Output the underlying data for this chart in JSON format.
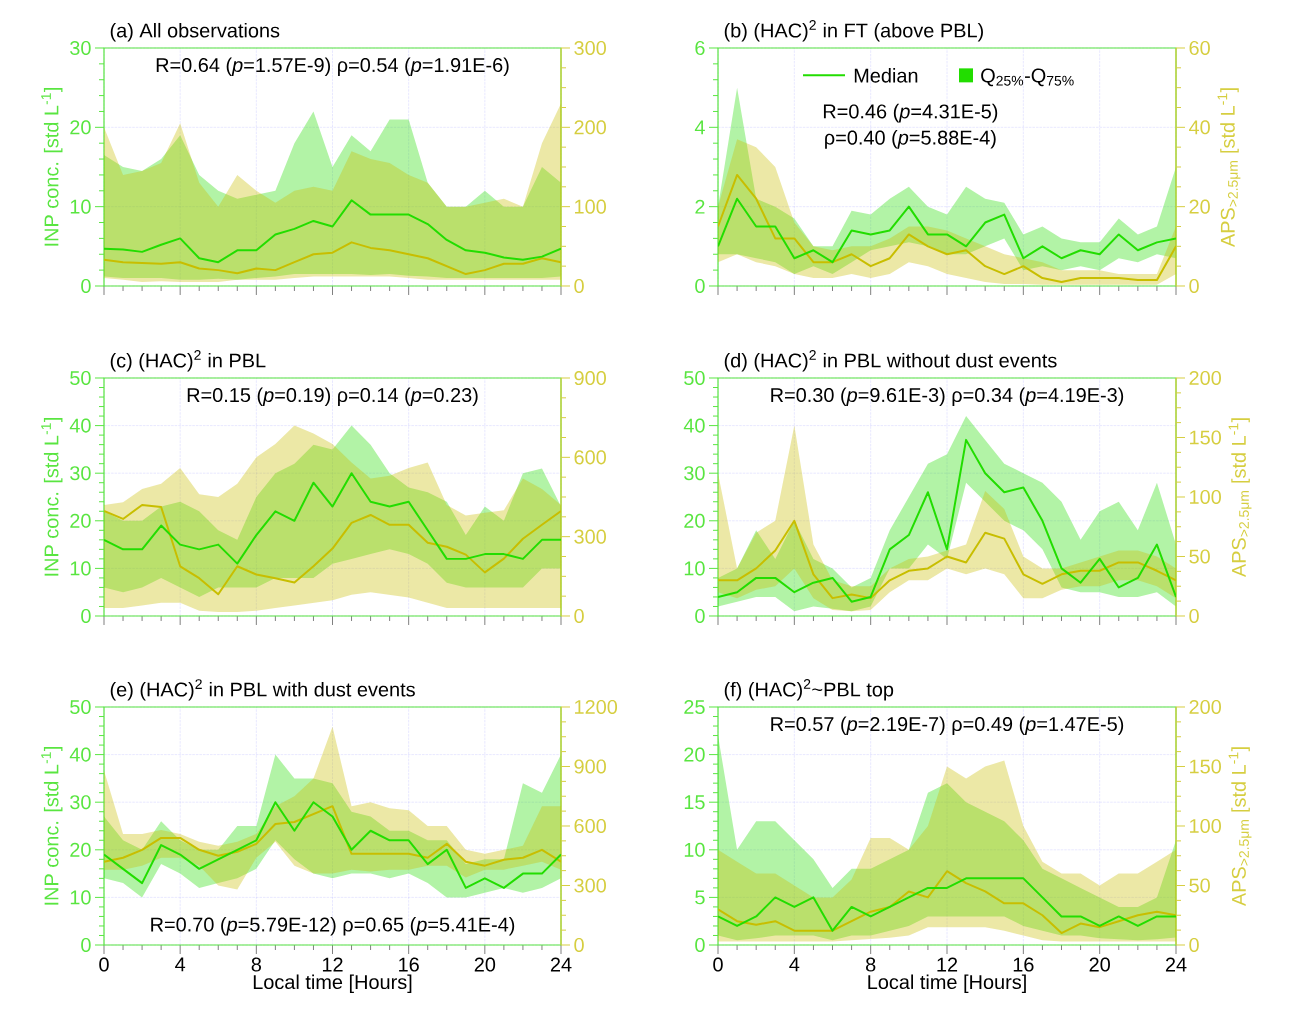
{
  "chart_data": [
    {
      "type": "line",
      "title": "(a) All observations",
      "ylabel": "INP conc. [std L$^{-1}$]",
      "annotations": [
        "R=0.64 (*p*=1.57E-9) ρ=0.54 (*p*=1.91E-6)"
      ],
      "x": [
        0,
        1,
        2,
        3,
        4,
        5,
        6,
        7,
        8,
        9,
        10,
        11,
        12,
        13,
        14,
        15,
        16,
        17,
        18,
        19,
        20,
        21,
        22,
        23,
        24
      ],
      "xlim": [
        0,
        24
      ],
      "xticks": [
        0,
        4,
        8,
        12,
        16,
        20,
        24
      ],
      "ylim": [
        0,
        30
      ],
      "yticks": [
        0,
        10,
        20,
        30
      ],
      "y2lim": [
        0,
        300
      ],
      "y2ticks": [
        0,
        100,
        200,
        300
      ],
      "grid": true,
      "tick_labels": "y",
      "series": [
        {
          "color": "#22dd00",
          "values": [
            4.7,
            4.6,
            4.3,
            5.2,
            6.0,
            3.5,
            3.0,
            4.5,
            4.5,
            6.5,
            7.2,
            8.2,
            7.5,
            10.8,
            9.0,
            9.0,
            9.0,
            7.8,
            5.8,
            4.5,
            4.2,
            3.6,
            3.3,
            3.7,
            4.7
          ],
          "lower": [
            1.2,
            1.0,
            1.0,
            1.0,
            0.8,
            0.8,
            0.9,
            0.8,
            1.0,
            1.2,
            1.5,
            1.5,
            1.5,
            1.5,
            1.4,
            1.5,
            1.3,
            1.2,
            1.0,
            1.0,
            1.0,
            1.0,
            1.0,
            1.0,
            1.2
          ],
          "upper": [
            16.5,
            15,
            14.5,
            16,
            19,
            14,
            12,
            11,
            11.5,
            12,
            18,
            22,
            15,
            19,
            17,
            21,
            21,
            13,
            10,
            10,
            12,
            10,
            10,
            15,
            13
          ]
        },
        {
          "color": "#c8be00",
          "axis": "y2",
          "values": [
            33,
            30,
            29,
            28,
            30,
            22,
            20,
            16,
            22,
            20,
            30,
            40,
            42,
            55,
            48,
            45,
            40,
            35,
            25,
            15,
            20,
            28,
            28,
            35,
            30
          ],
          "lower": [
            10,
            8,
            5,
            6,
            5,
            5,
            5,
            8,
            8,
            8,
            10,
            12,
            12,
            12,
            12,
            12,
            10,
            8,
            8,
            8,
            8,
            8,
            8,
            8,
            8
          ],
          "upper": [
            200,
            140,
            145,
            155,
            205,
            130,
            100,
            140,
            120,
            105,
            120,
            125,
            120,
            170,
            160,
            155,
            140,
            130,
            100,
            100,
            105,
            110,
            100,
            180,
            230
          ]
        }
      ]
    },
    {
      "type": "line",
      "title": "(b) (HAC)$^{2}$ in FT (above PBL)",
      "y2label": "APS$_{>2.5μm}$ [std L$^{-1}$]",
      "annotations": [
        "Q$_{25%}$-Q$_{75%}$",
        "R=0.46 (*p*=4.31E-5)",
        "ρ=0.40 (*p*=5.88E-4)"
      ],
      "legend": "top",
      "x": [
        0,
        1,
        2,
        3,
        4,
        5,
        6,
        7,
        8,
        9,
        10,
        11,
        12,
        13,
        14,
        15,
        16,
        17,
        18,
        19,
        20,
        21,
        22,
        23,
        24
      ],
      "xlim": [
        0,
        24
      ],
      "xticks": [
        0,
        4,
        8,
        12,
        16,
        20,
        24
      ],
      "ylim": [
        0,
        6
      ],
      "yticks": [
        0,
        2,
        4,
        6
      ],
      "y2lim": [
        0,
        60
      ],
      "y2ticks": [
        0,
        20,
        40,
        60
      ],
      "grid": true,
      "tick_labels": "y",
      "series": [
        {
          "name": "Median",
          "color": "#22dd00",
          "values": [
            1.0,
            2.2,
            1.5,
            1.5,
            0.7,
            0.9,
            0.6,
            1.4,
            1.3,
            1.4,
            2.0,
            1.3,
            1.3,
            1.0,
            1.6,
            1.8,
            0.7,
            1.0,
            0.7,
            0.9,
            0.8,
            1.3,
            0.9,
            1.1,
            1.2
          ],
          "lower": [
            0.8,
            0.8,
            0.7,
            0.6,
            0.3,
            0.5,
            0.3,
            0.6,
            0.9,
            1.0,
            1.1,
            1.0,
            0.8,
            0.8,
            1.0,
            1.2,
            0.4,
            0.5,
            0.4,
            0.5,
            0.4,
            0.7,
            0.6,
            0.8,
            0.7
          ],
          "upper": [
            2.0,
            5.0,
            2.2,
            2.0,
            1.7,
            1.0,
            1.0,
            1.9,
            1.8,
            2.2,
            2.5,
            2.0,
            1.8,
            2.5,
            2.2,
            2.1,
            1.3,
            1.5,
            1.2,
            1.1,
            1.1,
            1.7,
            1.3,
            1.5,
            3.0
          ]
        },
        {
          "color": "#c8be00",
          "axis": "y2",
          "values": [
            15,
            28,
            22,
            12,
            12,
            6,
            6,
            8,
            5,
            7,
            13,
            10,
            8,
            9,
            5,
            3,
            5,
            2,
            1,
            2,
            2,
            2,
            1.5,
            1.5,
            10
          ],
          "lower": [
            6,
            8,
            6,
            5,
            3,
            2,
            2,
            3,
            2,
            3,
            6,
            5,
            3,
            2,
            1,
            0.5,
            0.5,
            0.3,
            0.3,
            0.3,
            0.3,
            0.3,
            0.3,
            0.3,
            3
          ],
          "upper": [
            20,
            37,
            35,
            30,
            16,
            10,
            9,
            10,
            10,
            12,
            15,
            15,
            14,
            12,
            10,
            8,
            7,
            6,
            4,
            4,
            4,
            3,
            3,
            3,
            15
          ]
        }
      ]
    },
    {
      "type": "line",
      "title": "(c) (HAC)$^{2}$ in PBL",
      "ylabel": "INP conc. [std L$^{-1}$]",
      "annotations": [
        "R=0.15 (*p*=0.19)  ρ=0.14 (*p*=0.23)"
      ],
      "x": [
        0,
        1,
        2,
        3,
        4,
        5,
        6,
        7,
        8,
        9,
        10,
        11,
        12,
        13,
        14,
        15,
        16,
        17,
        18,
        19,
        20,
        21,
        22,
        23,
        24
      ],
      "xlim": [
        0,
        24
      ],
      "xticks": [
        0,
        4,
        8,
        12,
        16,
        20,
        24
      ],
      "ylim": [
        0,
        50
      ],
      "yticks": [
        0,
        10,
        20,
        30,
        40,
        50
      ],
      "y2lim": [
        0,
        900
      ],
      "y2ticks": [
        0,
        300,
        600,
        900
      ],
      "grid": true,
      "tick_labels": "y",
      "series": [
        {
          "color": "#22dd00",
          "values": [
            16,
            14,
            14,
            19,
            15,
            14,
            15,
            11,
            17,
            22,
            20,
            28,
            23,
            30,
            24,
            23,
            24,
            18,
            12,
            12,
            13,
            13,
            12,
            16,
            16
          ],
          "lower": [
            6,
            5,
            6,
            8,
            6,
            4,
            6,
            6,
            6,
            8,
            8,
            8,
            11,
            12,
            13,
            14,
            13,
            11,
            7,
            6,
            6,
            6,
            6,
            10,
            10
          ],
          "upper": [
            22,
            20,
            20,
            23,
            24,
            22,
            18,
            16,
            25,
            30,
            32,
            36,
            35,
            40,
            36,
            30,
            27,
            26,
            24,
            17,
            23,
            20,
            30,
            31,
            23
          ]
        },
        {
          "color": "#c8be00",
          "axis": "y2",
          "values": [
            397,
            367,
            420,
            412,
            188,
            143,
            82,
            188,
            157,
            143,
            127,
            188,
            255,
            352,
            382,
            345,
            345,
            277,
            262,
            232,
            165,
            217,
            292,
            345,
            397
          ],
          "lower": [
            30,
            30,
            40,
            50,
            50,
            20,
            15,
            15,
            20,
            30,
            40,
            50,
            60,
            80,
            90,
            80,
            70,
            50,
            30,
            30,
            30,
            30,
            30,
            30,
            30
          ],
          "upper": [
            420,
            430,
            480,
            500,
            560,
            460,
            450,
            500,
            600,
            650,
            720,
            690,
            650,
            580,
            520,
            530,
            560,
            580,
            420,
            380,
            390,
            400,
            520,
            480,
            420
          ]
        }
      ]
    },
    {
      "type": "line",
      "title": "(d) (HAC)$^{2}$ in PBL without dust events",
      "y2label": "APS$_{>2.5μm}$ [std L$^{-1}$]",
      "annotations": [
        "R=0.30 (*p*=9.61E-3)  ρ=0.34 (*p*=4.19E-3)"
      ],
      "x": [
        0,
        1,
        2,
        3,
        4,
        5,
        6,
        7,
        8,
        9,
        10,
        11,
        12,
        13,
        14,
        15,
        16,
        17,
        18,
        19,
        20,
        21,
        22,
        23,
        24
      ],
      "xlim": [
        0,
        24
      ],
      "xticks": [
        0,
        4,
        8,
        12,
        16,
        20,
        24
      ],
      "ylim": [
        0,
        50
      ],
      "yticks": [
        0,
        10,
        20,
        30,
        40,
        50
      ],
      "y2lim": [
        0,
        200
      ],
      "y2ticks": [
        0,
        50,
        100,
        150,
        200
      ],
      "grid": true,
      "tick_labels": "y",
      "series": [
        {
          "color": "#22dd00",
          "values": [
            4,
            5,
            8,
            8,
            5,
            7,
            8,
            3,
            4,
            14,
            17,
            26,
            14,
            37,
            30,
            26,
            27,
            20,
            10,
            7,
            12,
            6,
            8,
            15,
            4
          ],
          "lower": [
            2,
            3,
            4,
            4,
            1,
            2,
            1.5,
            1,
            2,
            10,
            10,
            15,
            12,
            28,
            24,
            20,
            18,
            14,
            6,
            5,
            5,
            4,
            4,
            5,
            2
          ],
          "upper": [
            8,
            10,
            18,
            12,
            20,
            12,
            10,
            6,
            8,
            18,
            25,
            32,
            34,
            42,
            37,
            32,
            30,
            28,
            24,
            16,
            22,
            24,
            18,
            28,
            15
          ]
        },
        {
          "color": "#c8be00",
          "axis": "y2",
          "values": [
            30,
            30,
            40,
            55,
            80,
            35,
            15,
            18,
            15,
            30,
            38,
            40,
            50,
            45,
            70,
            65,
            35,
            27,
            35,
            38,
            38,
            45,
            45,
            38,
            30
          ],
          "lower": [
            20,
            15,
            22,
            25,
            40,
            15,
            5,
            4,
            5,
            20,
            30,
            30,
            40,
            35,
            40,
            35,
            15,
            15,
            22,
            25,
            25,
            30,
            30,
            25,
            15
          ],
          "upper": [
            120,
            40,
            70,
            80,
            160,
            60,
            30,
            25,
            25,
            40,
            48,
            50,
            55,
            60,
            105,
            90,
            50,
            40,
            40,
            45,
            50,
            55,
            55,
            50,
            40
          ]
        }
      ]
    },
    {
      "type": "line",
      "title": "(e) (HAC)$^{2}$ in PBL with dust events",
      "xlabel": "Local time [Hours]",
      "ylabel": "INP conc. [std L$^{-1}$]",
      "annotations": [
        "R=0.70 (*p*=5.79E-12)  ρ=0.65 (*p*=5.41E-4)"
      ],
      "x": [
        0,
        1,
        2,
        3,
        4,
        5,
        6,
        7,
        8,
        9,
        10,
        11,
        12,
        13,
        14,
        15,
        16,
        17,
        18,
        19,
        20,
        21,
        22,
        23,
        24
      ],
      "xlim": [
        0,
        24
      ],
      "xticks": [
        0,
        4,
        8,
        12,
        16,
        20,
        24
      ],
      "ylim": [
        0,
        50
      ],
      "yticks": [
        0,
        10,
        20,
        30,
        40,
        50
      ],
      "y2lim": [
        0,
        1200
      ],
      "y2ticks": [
        0,
        300,
        600,
        900,
        1200
      ],
      "grid": true,
      "series": [
        {
          "color": "#22dd00",
          "values": [
            19,
            16,
            13,
            21,
            19,
            16,
            18,
            20,
            22,
            30,
            24,
            30,
            27,
            20,
            24,
            22,
            22,
            17,
            20,
            12,
            14,
            12,
            15,
            15,
            19
          ],
          "lower": [
            14,
            13,
            10,
            17,
            15,
            12,
            13,
            14,
            16,
            22,
            18,
            15,
            14,
            15,
            15,
            14,
            15,
            13,
            10,
            10,
            11,
            12,
            11,
            12,
            14
          ],
          "upper": [
            27,
            22,
            20,
            26,
            22,
            20,
            20,
            25,
            25,
            40,
            35,
            35,
            34,
            28,
            27,
            24,
            24,
            22,
            22,
            17,
            18,
            18,
            34,
            32,
            40
          ]
        },
        {
          "color": "#c8be00",
          "axis": "y2",
          "values": [
            420,
            440,
            480,
            540,
            540,
            480,
            450,
            470,
            510,
            610,
            620,
            660,
            700,
            460,
            460,
            460,
            460,
            440,
            510,
            420,
            400,
            430,
            440,
            480,
            420
          ],
          "lower": [
            380,
            380,
            400,
            440,
            440,
            400,
            300,
            280,
            440,
            520,
            400,
            360,
            360,
            380,
            370,
            380,
            380,
            400,
            400,
            340,
            380,
            380,
            400,
            420,
            380
          ],
          "upper": [
            880,
            560,
            560,
            580,
            560,
            520,
            500,
            520,
            560,
            700,
            750,
            840,
            1100,
            700,
            720,
            690,
            680,
            600,
            600,
            480,
            460,
            480,
            500,
            700,
            700
          ]
        }
      ]
    },
    {
      "type": "line",
      "title": "(f) (HAC)$^{2}$~PBL top",
      "xlabel": "Local time [Hours]",
      "y2label": "APS$_{>2.5μm}$ [std L$^{-1}$]",
      "annotations": [
        "R=0.57 (*p*=2.19E-7)  ρ=0.49 (*p*=1.47E-5)"
      ],
      "x": [
        0,
        1,
        2,
        3,
        4,
        5,
        6,
        7,
        8,
        9,
        10,
        11,
        12,
        13,
        14,
        15,
        16,
        17,
        18,
        19,
        20,
        21,
        22,
        23,
        24
      ],
      "xlim": [
        0,
        24
      ],
      "xticks": [
        0,
        4,
        8,
        12,
        16,
        20,
        24
      ],
      "ylim": [
        0,
        25
      ],
      "yticks": [
        0,
        5,
        10,
        15,
        20,
        25
      ],
      "y2lim": [
        0,
        200
      ],
      "y2ticks": [
        0,
        50,
        100,
        150,
        200
      ],
      "grid": true,
      "series": [
        {
          "color": "#22dd00",
          "values": [
            3,
            2,
            3,
            5,
            4,
            5,
            1.5,
            4,
            3,
            4,
            5,
            6,
            6,
            7,
            7,
            7,
            7,
            5,
            3,
            3,
            2,
            3,
            2,
            3,
            3
          ],
          "lower": [
            1,
            0.5,
            0.7,
            1,
            1,
            1,
            0.5,
            1,
            1,
            1.5,
            2,
            3,
            3,
            3,
            3,
            3,
            2,
            1.5,
            1,
            1,
            0.7,
            0.6,
            0.5,
            0.6,
            0.8
          ],
          "upper": [
            22,
            10,
            13,
            13,
            11,
            9,
            6,
            8,
            8,
            9,
            10,
            16,
            17,
            15,
            14,
            13,
            11,
            8,
            7,
            6,
            5,
            4,
            4,
            5,
            11
          ]
        },
        {
          "color": "#c8be00",
          "axis": "y2",
          "values": [
            30,
            20,
            17,
            20,
            12,
            12,
            12,
            20,
            28,
            32,
            45,
            40,
            62,
            52,
            45,
            35,
            35,
            25,
            10,
            18,
            15,
            20,
            25,
            28,
            25
          ],
          "lower": [
            3,
            3,
            3,
            3,
            3,
            3,
            3,
            4,
            5,
            6,
            8,
            15,
            15,
            15,
            15,
            12,
            8,
            4,
            3,
            3,
            3,
            3,
            3,
            3,
            3
          ],
          "upper": [
            80,
            70,
            60,
            60,
            50,
            40,
            40,
            55,
            90,
            90,
            80,
            100,
            150,
            140,
            150,
            155,
            100,
            70,
            60,
            60,
            50,
            60,
            60,
            70,
            80
          ]
        }
      ]
    }
  ]
}
